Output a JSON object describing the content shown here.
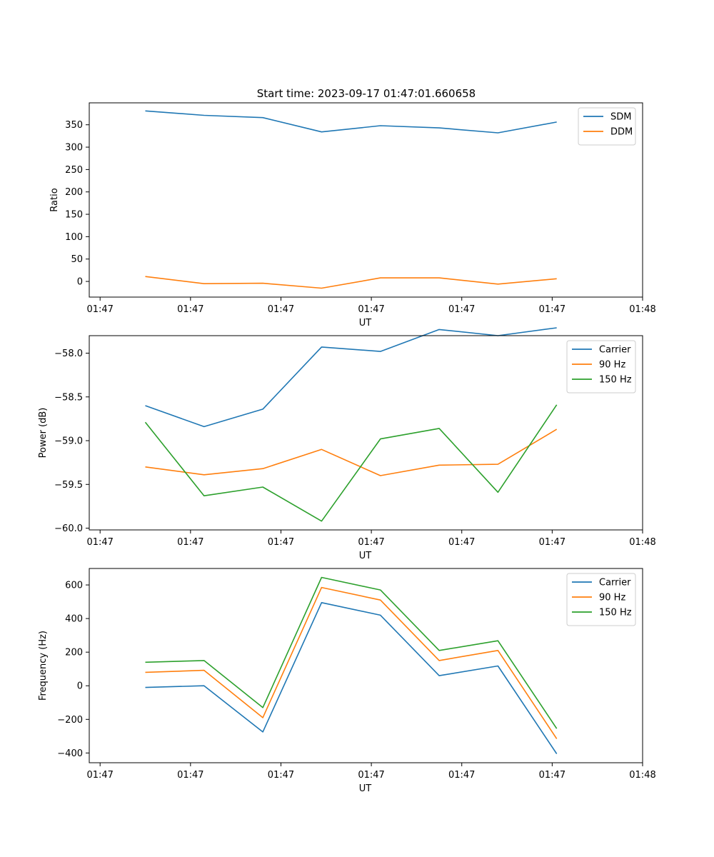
{
  "figure": {
    "title": "Start time: 2023-09-17 01:47:01.660658"
  },
  "chart_data": [
    {
      "type": "line",
      "title": "Start time: 2023-09-17 01:47:01.660658",
      "xlabel": "UT",
      "ylabel": "Ratio",
      "x_tick_labels": [
        "01:47",
        "01:47",
        "01:47",
        "01:47",
        "01:47",
        "01:47",
        "01:48"
      ],
      "x_ticks": [
        0,
        1,
        2,
        3,
        4,
        5,
        6
      ],
      "xlim": [
        -0.12,
        6
      ],
      "y_ticks": [
        0,
        50,
        100,
        150,
        200,
        250,
        300,
        350
      ],
      "ylim": [
        -35,
        399
      ],
      "legend_position": "top-right",
      "x": [
        0.5,
        1.15,
        1.8,
        2.45,
        3.1,
        3.75,
        4.4,
        5.05
      ],
      "series": [
        {
          "name": "SDM",
          "color": "#1f77b4",
          "values": [
            381,
            371,
            366,
            334,
            348,
            343,
            332,
            356
          ]
        },
        {
          "name": "DDM",
          "color": "#ff7f0e",
          "values": [
            11,
            -5,
            -4,
            -15,
            8,
            8,
            -6,
            6
          ]
        }
      ]
    },
    {
      "type": "line",
      "xlabel": "UT",
      "ylabel": "Power (dB)",
      "x_tick_labels": [
        "01:47",
        "01:47",
        "01:47",
        "01:47",
        "01:47",
        "01:47",
        "01:48"
      ],
      "x_ticks": [
        0,
        1,
        2,
        3,
        4,
        5,
        6
      ],
      "xlim": [
        -0.12,
        6
      ],
      "y_ticks": [
        -60.0,
        -59.5,
        -59.0,
        -58.5,
        -58.0
      ],
      "y_tick_labels": [
        "−60.0",
        "−59.5",
        "−59.0",
        "−58.5",
        "−58.0"
      ],
      "ylim": [
        -60.02,
        -57.8
      ],
      "legend_position": "top-right",
      "x": [
        0.5,
        1.15,
        1.8,
        2.45,
        3.1,
        3.75,
        4.4,
        5.05
      ],
      "series": [
        {
          "name": "Carrier",
          "color": "#1f77b4",
          "values": [
            -58.6,
            -58.84,
            -58.64,
            -57.93,
            -57.98,
            -57.73,
            -57.8,
            -57.71
          ]
        },
        {
          "name": "90 Hz",
          "color": "#ff7f0e",
          "values": [
            -59.3,
            -59.39,
            -59.32,
            -59.1,
            -59.4,
            -59.28,
            -59.27,
            -58.87
          ]
        },
        {
          "name": "150 Hz",
          "color": "#2ca02c",
          "values": [
            -58.79,
            -59.63,
            -59.53,
            -59.92,
            -58.98,
            -58.86,
            -59.59,
            -58.59
          ]
        }
      ]
    },
    {
      "type": "line",
      "xlabel": "UT",
      "ylabel": "Frequency (Hz)",
      "x_tick_labels": [
        "01:47",
        "01:47",
        "01:47",
        "01:47",
        "01:47",
        "01:47",
        "01:48"
      ],
      "x_ticks": [
        0,
        1,
        2,
        3,
        4,
        5,
        6
      ],
      "xlim": [
        -0.12,
        6
      ],
      "y_ticks": [
        -400,
        -200,
        0,
        200,
        400,
        600
      ],
      "y_tick_labels": [
        "−400",
        "−200",
        "0",
        "200",
        "400",
        "600"
      ],
      "ylim": [
        -458,
        698
      ],
      "legend_position": "top-right",
      "x": [
        0.5,
        1.15,
        1.8,
        2.45,
        3.1,
        3.75,
        4.4,
        5.05
      ],
      "series": [
        {
          "name": "Carrier",
          "color": "#1f77b4",
          "values": [
            -10,
            0,
            -275,
            495,
            420,
            60,
            118,
            -405
          ]
        },
        {
          "name": "90 Hz",
          "color": "#ff7f0e",
          "values": [
            80,
            92,
            -190,
            585,
            510,
            150,
            210,
            -315
          ]
        },
        {
          "name": "150 Hz",
          "color": "#2ca02c",
          "values": [
            140,
            150,
            -130,
            645,
            570,
            210,
            268,
            -255
          ]
        }
      ]
    }
  ]
}
